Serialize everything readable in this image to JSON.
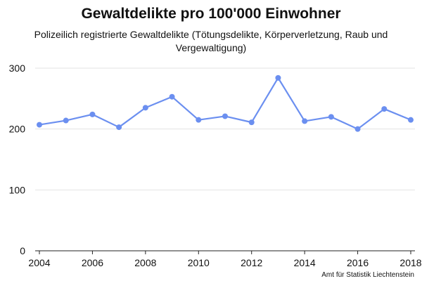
{
  "chart_data": {
    "type": "line",
    "title": "Gewaltdelikte pro 100'000 Einwohner",
    "subtitle": "Polizeilich registrierte Gewaltdelikte (Tötungsdelikte, Körperverletzung, Raub und Vergewaltigung)",
    "source": "Amt für Statistik Liechtenstein",
    "xlabel": "",
    "ylabel": "",
    "x": [
      2004,
      2005,
      2006,
      2007,
      2008,
      2009,
      2010,
      2011,
      2012,
      2013,
      2014,
      2015,
      2016,
      2017,
      2018
    ],
    "series": [
      {
        "values": [
          207,
          214,
          224,
          203,
          235,
          253,
          215,
          221,
          211,
          284,
          213,
          220,
          200,
          233,
          215
        ]
      }
    ],
    "xlim": [
      2004,
      2018
    ],
    "ylim": [
      0,
      300
    ],
    "xticks": [
      2004,
      2006,
      2008,
      2010,
      2012,
      2014,
      2016,
      2018
    ],
    "yticks": [
      0,
      100,
      200,
      300
    ],
    "grid": true,
    "legend": "none",
    "line_color": "#6b8ff0",
    "grid_color": "#e3e3e3"
  }
}
